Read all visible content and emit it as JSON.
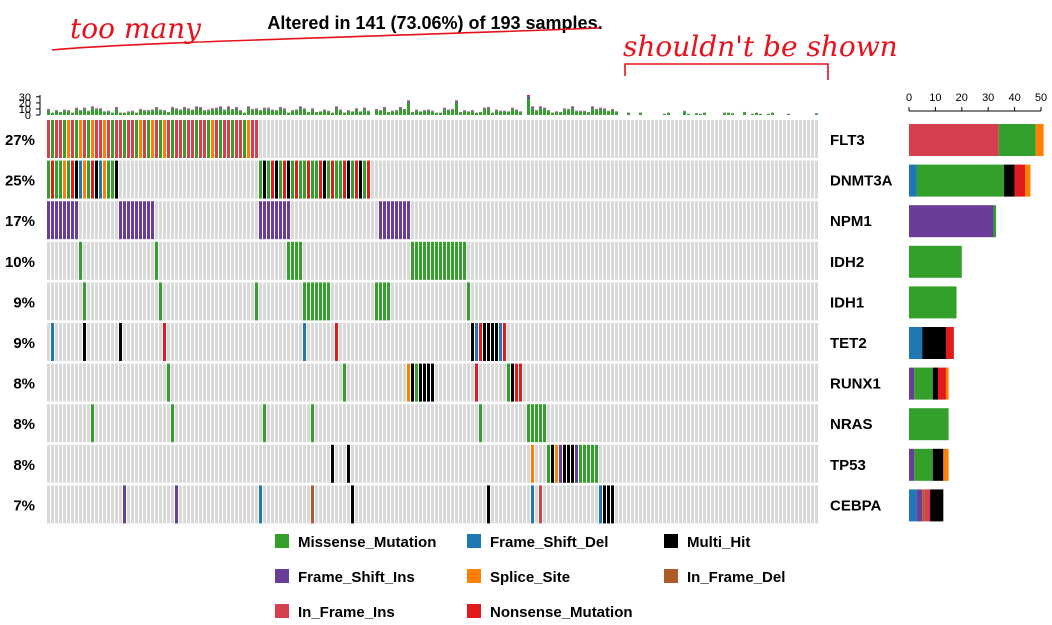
{
  "title": "Altered in 141 (73.06%) of 193 samples.",
  "annotations": {
    "handwritten_left": "too many",
    "handwritten_right": "shouldn't be shown"
  },
  "colors": {
    "Missense_Mutation": "#33a02c",
    "Frame_Shift_Del": "#1f78b4",
    "Multi_Hit": "#000000",
    "Frame_Shift_Ins": "#6a3d9a",
    "Splice_Site": "#ff7f00",
    "In_Frame_Del": "#b15928",
    "In_Frame_Ins": "#d6404e",
    "Nonsense_Mutation": "#e31a1c",
    "background": "#d9d9d9",
    "annotation_red": "#e8101a"
  },
  "chart_data": {
    "type": "heatmap",
    "subtype": "oncoplot",
    "n_samples": 193,
    "n_altered": 141,
    "top_axis": {
      "ticks": [
        0,
        10,
        20,
        30
      ],
      "ylim": [
        0,
        33
      ]
    },
    "right_axis": {
      "ticks": [
        0,
        10,
        20,
        30,
        40,
        50
      ],
      "xlim": [
        0,
        50
      ]
    },
    "genes": [
      {
        "name": "FLT3",
        "pct": "27%",
        "counts": {
          "In_Frame_Ins": 34,
          "Missense_Mutation": 14,
          "Splice_Site": 3
        },
        "segments": [
          {
            "from": 0,
            "to": 52,
            "mix": [
              "In_Frame_Ins",
              "Missense_Mutation",
              "Splice_Site"
            ]
          }
        ]
      },
      {
        "name": "DNMT3A",
        "pct": "25%",
        "counts": {
          "Frame_Shift_Del": 3,
          "Missense_Mutation": 33,
          "Multi_Hit": 4,
          "Nonsense_Mutation": 4,
          "Splice_Site": 2
        },
        "segments": [
          {
            "from": 0,
            "to": 17,
            "mix": [
              "Missense_Mutation",
              "Nonsense_Mutation",
              "Multi_Hit",
              "Frame_Shift_Del",
              "Splice_Site"
            ]
          },
          {
            "from": 53,
            "to": 80,
            "mix": [
              "Missense_Mutation",
              "Nonsense_Mutation",
              "Multi_Hit"
            ]
          }
        ]
      },
      {
        "name": "NPM1",
        "pct": "17%",
        "counts": {
          "Frame_Shift_Ins": 32,
          "Missense_Mutation": 1
        },
        "segments": [
          {
            "from": 0,
            "to": 7,
            "mix": [
              "Frame_Shift_Ins"
            ]
          },
          {
            "from": 18,
            "to": 26,
            "mix": [
              "Frame_Shift_Ins"
            ]
          },
          {
            "from": 53,
            "to": 60,
            "mix": [
              "Frame_Shift_Ins"
            ]
          },
          {
            "from": 83,
            "to": 90,
            "mix": [
              "Frame_Shift_Ins"
            ]
          }
        ]
      },
      {
        "name": "IDH2",
        "pct": "10%",
        "counts": {
          "Missense_Mutation": 20
        },
        "segments": [
          {
            "from": 8,
            "to": 8,
            "mix": [
              "Missense_Mutation"
            ]
          },
          {
            "from": 27,
            "to": 27,
            "mix": [
              "Missense_Mutation"
            ]
          },
          {
            "from": 60,
            "to": 63,
            "mix": [
              "Missense_Mutation"
            ]
          },
          {
            "from": 91,
            "to": 104,
            "mix": [
              "Missense_Mutation"
            ]
          }
        ]
      },
      {
        "name": "IDH1",
        "pct": "9%",
        "counts": {
          "Missense_Mutation": 18
        },
        "segments": [
          {
            "from": 9,
            "to": 9,
            "mix": [
              "Missense_Mutation"
            ]
          },
          {
            "from": 28,
            "to": 28,
            "mix": [
              "Missense_Mutation"
            ]
          },
          {
            "from": 52,
            "to": 52,
            "mix": [
              "Missense_Mutation"
            ]
          },
          {
            "from": 64,
            "to": 70,
            "mix": [
              "Missense_Mutation"
            ]
          },
          {
            "from": 82,
            "to": 85,
            "mix": [
              "Missense_Mutation"
            ]
          },
          {
            "from": 105,
            "to": 105,
            "mix": [
              "Missense_Mutation"
            ]
          }
        ]
      },
      {
        "name": "TET2",
        "pct": "9%",
        "counts": {
          "Frame_Shift_Del": 5,
          "Multi_Hit": 9,
          "Nonsense_Mutation": 3
        },
        "segments": [
          {
            "from": 1,
            "to": 1,
            "mix": [
              "Frame_Shift_Del"
            ]
          },
          {
            "from": 9,
            "to": 9,
            "mix": [
              "Multi_Hit"
            ]
          },
          {
            "from": 18,
            "to": 18,
            "mix": [
              "Multi_Hit"
            ]
          },
          {
            "from": 29,
            "to": 29,
            "mix": [
              "Nonsense_Mutation"
            ]
          },
          {
            "from": 64,
            "to": 64,
            "mix": [
              "Frame_Shift_Del"
            ]
          },
          {
            "from": 72,
            "to": 72,
            "mix": [
              "Frame_Shift_Del",
              "Nonsense_Mutation"
            ]
          },
          {
            "from": 106,
            "to": 114,
            "mix": [
              "Multi_Hit",
              "Frame_Shift_Del",
              "Nonsense_Mutation"
            ]
          }
        ]
      },
      {
        "name": "RUNX1",
        "pct": "8%",
        "counts": {
          "Frame_Shift_Ins": 2,
          "Missense_Mutation": 7,
          "Multi_Hit": 2,
          "Nonsense_Mutation": 3,
          "Splice_Site": 1
        },
        "segments": [
          {
            "from": 30,
            "to": 30,
            "mix": [
              "Missense_Mutation"
            ]
          },
          {
            "from": 74,
            "to": 74,
            "mix": [
              "Missense_Mutation"
            ]
          },
          {
            "from": 90,
            "to": 96,
            "mix": [
              "Multi_Hit",
              "Frame_Shift_Ins",
              "Splice_Site",
              "Nonsense_Mutation",
              "Missense_Mutation"
            ]
          },
          {
            "from": 107,
            "to": 107,
            "mix": [
              "Nonsense_Mutation"
            ]
          },
          {
            "from": 115,
            "to": 118,
            "mix": [
              "Nonsense_Mutation",
              "Missense_Mutation",
              "Multi_Hit"
            ]
          }
        ]
      },
      {
        "name": "NRAS",
        "pct": "8%",
        "counts": {
          "Missense_Mutation": 15
        },
        "segments": [
          {
            "from": 11,
            "to": 11,
            "mix": [
              "Missense_Mutation"
            ]
          },
          {
            "from": 31,
            "to": 31,
            "mix": [
              "Missense_Mutation"
            ]
          },
          {
            "from": 54,
            "to": 54,
            "mix": [
              "Missense_Mutation"
            ]
          },
          {
            "from": 66,
            "to": 66,
            "mix": [
              "Missense_Mutation"
            ]
          },
          {
            "from": 108,
            "to": 108,
            "mix": [
              "Missense_Mutation"
            ]
          },
          {
            "from": 120,
            "to": 124,
            "mix": [
              "Missense_Mutation"
            ]
          }
        ]
      },
      {
        "name": "TP53",
        "pct": "8%",
        "counts": {
          "Frame_Shift_Ins": 2,
          "Missense_Mutation": 7,
          "Multi_Hit": 4,
          "Splice_Site": 2
        },
        "segments": [
          {
            "from": 71,
            "to": 71,
            "mix": [
              "Multi_Hit"
            ]
          },
          {
            "from": 75,
            "to": 75,
            "mix": [
              "Multi_Hit"
            ]
          },
          {
            "from": 121,
            "to": 121,
            "mix": [
              "Splice_Site"
            ]
          },
          {
            "from": 125,
            "to": 132,
            "mix": [
              "Multi_Hit",
              "Splice_Site",
              "Frame_Shift_Ins",
              "Missense_Mutation"
            ]
          },
          {
            "from": 133,
            "to": 137,
            "mix": [
              "Missense_Mutation"
            ]
          }
        ]
      },
      {
        "name": "CEBPA",
        "pct": "7%",
        "counts": {
          "Frame_Shift_Del": 3,
          "Frame_Shift_Ins": 2,
          "In_Frame_Del": 1,
          "In_Frame_Ins": 2,
          "Multi_Hit": 5
        },
        "segments": [
          {
            "from": 19,
            "to": 19,
            "mix": [
              "Frame_Shift_Ins"
            ]
          },
          {
            "from": 32,
            "to": 32,
            "mix": [
              "Frame_Shift_Ins"
            ]
          },
          {
            "from": 53,
            "to": 53,
            "mix": [
              "Frame_Shift_Del"
            ]
          },
          {
            "from": 66,
            "to": 66,
            "mix": [
              "In_Frame_Del"
            ]
          },
          {
            "from": 76,
            "to": 76,
            "mix": [
              "Multi_Hit"
            ]
          },
          {
            "from": 110,
            "to": 110,
            "mix": [
              "Multi_Hit"
            ]
          },
          {
            "from": 121,
            "to": 121,
            "mix": [
              "Frame_Shift_Del"
            ]
          },
          {
            "from": 123,
            "to": 123,
            "mix": [
              "In_Frame_Ins"
            ]
          },
          {
            "from": 138,
            "to": 141,
            "mix": [
              "Multi_Hit",
              "In_Frame_Ins",
              "Frame_Shift_Del"
            ]
          }
        ]
      }
    ],
    "legend": [
      [
        "Missense_Mutation",
        "Frame_Shift_Del",
        "Multi_Hit"
      ],
      [
        "Frame_Shift_Ins",
        "Splice_Site",
        "In_Frame_Del"
      ],
      [
        "In_Frame_Ins",
        "Nonsense_Mutation"
      ]
    ]
  }
}
